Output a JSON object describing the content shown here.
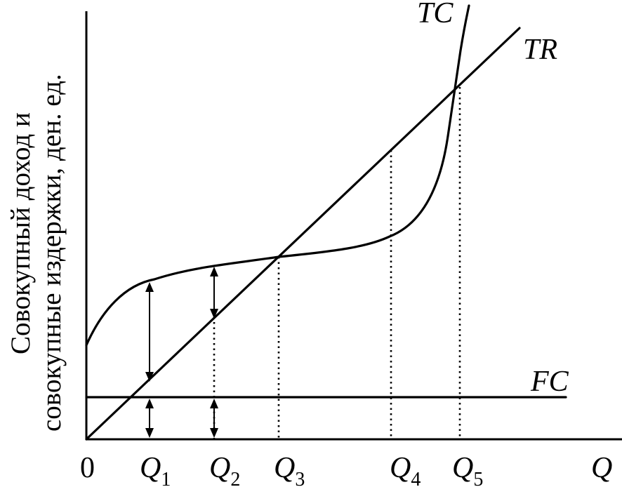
{
  "chart_data": {
    "type": "line",
    "title": "",
    "xlabel": "Q",
    "ylabel_lines": [
      "Совокупный доход и",
      "совокупные издержки, ден. ед."
    ],
    "origin_label": "0",
    "x_ticks": [
      {
        "label": "Q",
        "sub": "1"
      },
      {
        "label": "Q",
        "sub": "2"
      },
      {
        "label": "Q",
        "sub": "3"
      },
      {
        "label": "Q",
        "sub": "4"
      },
      {
        "label": "Q",
        "sub": "5"
      }
    ],
    "series": [
      {
        "name": "TC"
      },
      {
        "name": "TR"
      },
      {
        "name": "FC"
      }
    ],
    "grid": false,
    "legend": "none"
  }
}
